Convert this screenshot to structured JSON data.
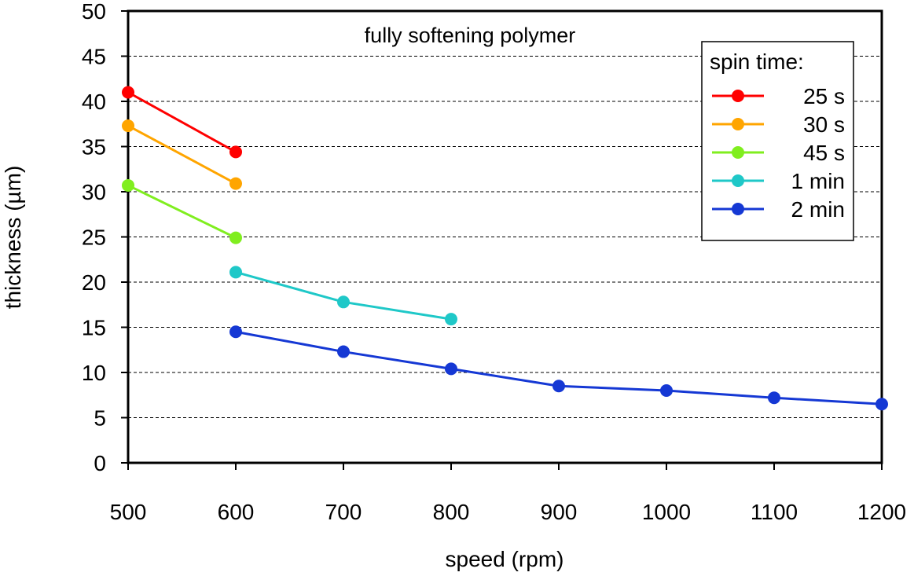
{
  "chart_data": {
    "type": "line",
    "title": "fully softening polymer",
    "xlabel": "speed (rpm)",
    "ylabel": "thickness (µm)",
    "xlim": [
      500,
      1200
    ],
    "ylim": [
      0,
      50
    ],
    "x_ticks": [
      500,
      600,
      700,
      800,
      900,
      1000,
      1100,
      1200
    ],
    "y_ticks": [
      0,
      5,
      10,
      15,
      20,
      25,
      30,
      35,
      40,
      45,
      50
    ],
    "grid": "horizontal dashed",
    "legend": {
      "title": "spin time:",
      "position": "top-right"
    },
    "series": [
      {
        "name": "25 s",
        "color": "#ff0000",
        "x": [
          500,
          600
        ],
        "y": [
          41.0,
          34.4
        ]
      },
      {
        "name": "30 s",
        "color": "#ffa500",
        "x": [
          500,
          600
        ],
        "y": [
          37.3,
          30.9
        ]
      },
      {
        "name": "45 s",
        "color": "#80ee1f",
        "x": [
          500,
          600
        ],
        "y": [
          30.7,
          24.9
        ]
      },
      {
        "name": "1 min",
        "color": "#1fc8c8",
        "x": [
          600,
          700,
          800
        ],
        "y": [
          21.1,
          17.8,
          15.9
        ]
      },
      {
        "name": "2 min",
        "color": "#1538d4",
        "x": [
          600,
          700,
          800,
          900,
          1000,
          1100,
          1200
        ],
        "y": [
          14.5,
          12.3,
          10.4,
          8.5,
          8.0,
          7.2,
          6.5
        ]
      }
    ]
  }
}
